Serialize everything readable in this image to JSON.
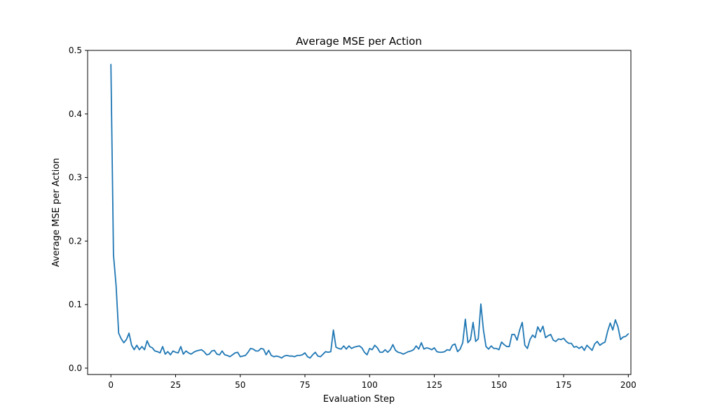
{
  "chart_data": {
    "type": "line",
    "title": "Average MSE per Action",
    "xlabel": "Evaluation Step",
    "ylabel": "Average MSE per Action",
    "xlim": [
      -9,
      201
    ],
    "ylim": [
      -0.01,
      0.5
    ],
    "xticks": [
      0,
      25,
      50,
      75,
      100,
      125,
      150,
      175,
      200
    ],
    "yticks": [
      0.0,
      0.1,
      0.2,
      0.3,
      0.4,
      0.5
    ],
    "xtick_labels": [
      "0",
      "25",
      "50",
      "75",
      "100",
      "125",
      "150",
      "175",
      "200"
    ],
    "ytick_labels": [
      "0.0",
      "0.1",
      "0.2",
      "0.3",
      "0.4",
      "0.5"
    ],
    "grid": false,
    "series": [
      {
        "color": "#1f77b4",
        "x": [
          0,
          1,
          2,
          3,
          4,
          5,
          6,
          7,
          8,
          9,
          10,
          11,
          12,
          13,
          14,
          15,
          16,
          17,
          18,
          19,
          20,
          21,
          22,
          23,
          24,
          25,
          26,
          27,
          28,
          29,
          30,
          31,
          32,
          33,
          34,
          35,
          36,
          37,
          38,
          39,
          40,
          41,
          42,
          43,
          44,
          45,
          46,
          47,
          48,
          49,
          50,
          51,
          52,
          53,
          54,
          55,
          56,
          57,
          58,
          59,
          60,
          61,
          62,
          63,
          64,
          65,
          66,
          67,
          68,
          69,
          70,
          71,
          72,
          73,
          74,
          75,
          76,
          77,
          78,
          79,
          80,
          81,
          82,
          83,
          84,
          85,
          86,
          87,
          88,
          89,
          90,
          91,
          92,
          93,
          94,
          95,
          96,
          97,
          98,
          99,
          100,
          101,
          102,
          103,
          104,
          105,
          106,
          107,
          108,
          109,
          110,
          111,
          112,
          113,
          114,
          115,
          116,
          117,
          118,
          119,
          120,
          121,
          122,
          123,
          124,
          125,
          126,
          127,
          128,
          129,
          130,
          131,
          132,
          133,
          134,
          135,
          136,
          137,
          138,
          139,
          140,
          141,
          142,
          143,
          144,
          145,
          146,
          147,
          148,
          149,
          150,
          151,
          152,
          153,
          154,
          155,
          156,
          157,
          158,
          159,
          160,
          161,
          162,
          163,
          164,
          165,
          166,
          167,
          168,
          169,
          170,
          171,
          172,
          173,
          174,
          175,
          176,
          177,
          178,
          179,
          180,
          181,
          182,
          183,
          184,
          185,
          186,
          187,
          188,
          189,
          190,
          191,
          192,
          193,
          194,
          195,
          196,
          197,
          198,
          199,
          200
        ],
        "y": [
          0.478,
          0.178,
          0.13,
          0.055,
          0.046,
          0.04,
          0.045,
          0.055,
          0.036,
          0.029,
          0.036,
          0.029,
          0.034,
          0.029,
          0.043,
          0.034,
          0.032,
          0.027,
          0.026,
          0.024,
          0.034,
          0.022,
          0.026,
          0.021,
          0.027,
          0.025,
          0.024,
          0.034,
          0.022,
          0.027,
          0.024,
          0.022,
          0.025,
          0.027,
          0.028,
          0.029,
          0.026,
          0.021,
          0.022,
          0.027,
          0.028,
          0.022,
          0.021,
          0.027,
          0.021,
          0.02,
          0.018,
          0.021,
          0.024,
          0.025,
          0.018,
          0.019,
          0.02,
          0.025,
          0.031,
          0.03,
          0.027,
          0.027,
          0.031,
          0.03,
          0.021,
          0.028,
          0.02,
          0.018,
          0.019,
          0.018,
          0.016,
          0.019,
          0.02,
          0.019,
          0.019,
          0.018,
          0.02,
          0.02,
          0.021,
          0.024,
          0.018,
          0.016,
          0.021,
          0.025,
          0.019,
          0.018,
          0.022,
          0.026,
          0.025,
          0.026,
          0.06,
          0.033,
          0.031,
          0.03,
          0.035,
          0.03,
          0.035,
          0.031,
          0.033,
          0.034,
          0.035,
          0.032,
          0.025,
          0.021,
          0.031,
          0.029,
          0.036,
          0.032,
          0.025,
          0.025,
          0.029,
          0.025,
          0.029,
          0.037,
          0.028,
          0.025,
          0.024,
          0.022,
          0.024,
          0.026,
          0.027,
          0.029,
          0.035,
          0.03,
          0.04,
          0.03,
          0.032,
          0.031,
          0.029,
          0.032,
          0.026,
          0.025,
          0.025,
          0.026,
          0.029,
          0.028,
          0.036,
          0.038,
          0.026,
          0.03,
          0.04,
          0.077,
          0.04,
          0.045,
          0.072,
          0.042,
          0.046,
          0.101,
          0.06,
          0.034,
          0.03,
          0.035,
          0.031,
          0.031,
          0.029,
          0.041,
          0.037,
          0.034,
          0.034,
          0.053,
          0.053,
          0.044,
          0.06,
          0.072,
          0.036,
          0.031,
          0.045,
          0.052,
          0.048,
          0.065,
          0.057,
          0.066,
          0.048,
          0.051,
          0.053,
          0.044,
          0.042,
          0.046,
          0.045,
          0.047,
          0.042,
          0.039,
          0.039,
          0.033,
          0.034,
          0.031,
          0.034,
          0.028,
          0.036,
          0.032,
          0.028,
          0.038,
          0.042,
          0.036,
          0.039,
          0.041,
          0.058,
          0.071,
          0.06,
          0.076,
          0.065,
          0.045,
          0.049,
          0.05,
          0.054
        ]
      }
    ]
  }
}
